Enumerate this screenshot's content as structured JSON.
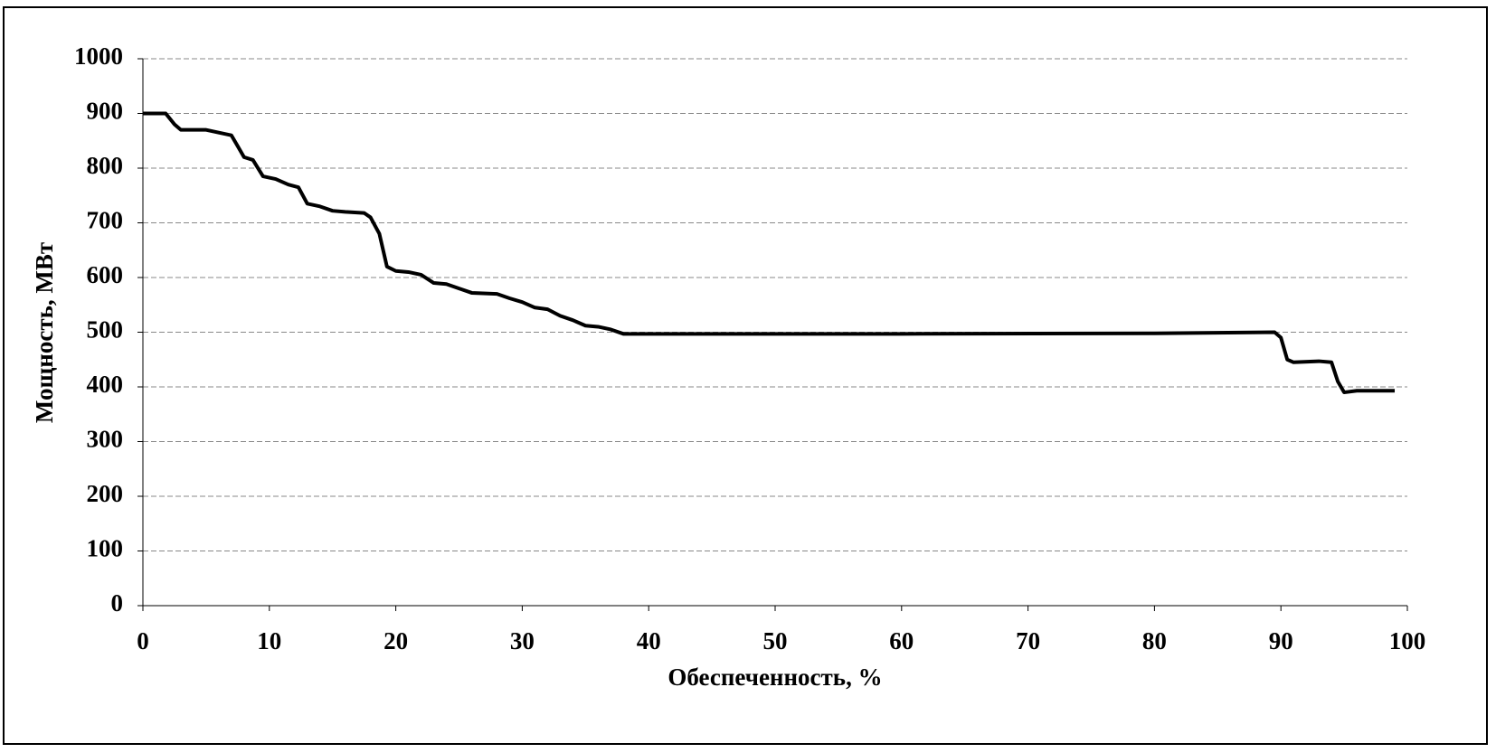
{
  "chart_data": {
    "type": "line",
    "x_label": "Обеспеченность, %",
    "y_label": "Мощность, МВт",
    "xlim": [
      0,
      100
    ],
    "xticks": [
      0,
      10,
      20,
      30,
      40,
      50,
      60,
      70,
      80,
      90,
      100
    ],
    "ylim": [
      0,
      1000
    ],
    "yticks": [
      0,
      100,
      200,
      300,
      400,
      500,
      600,
      700,
      800,
      900,
      1000
    ],
    "grid": true,
    "series": [
      {
        "color": "#000000",
        "x": [
          0,
          1,
          1.8,
          2.5,
          3,
          5,
          6,
          7,
          7.5,
          8,
          8.7,
          9.5,
          10.5,
          11.5,
          12.3,
          13,
          14,
          15,
          16,
          17.5,
          18,
          18.7,
          19.3,
          20,
          21,
          22,
          23,
          24,
          25,
          26,
          28,
          29,
          30,
          31,
          32,
          33,
          34,
          35,
          36,
          37,
          38,
          40,
          60,
          80,
          89.5,
          90,
          90.5,
          91,
          93,
          94,
          94.5,
          95,
          96,
          99
        ],
        "values": [
          900,
          900,
          900,
          880,
          870,
          870,
          865,
          860,
          840,
          820,
          815,
          785,
          780,
          770,
          765,
          735,
          730,
          722,
          720,
          718,
          710,
          680,
          620,
          612,
          610,
          605,
          590,
          588,
          580,
          572,
          570,
          562,
          555,
          545,
          542,
          530,
          522,
          512,
          510,
          505,
          497,
          497,
          497,
          498,
          500,
          490,
          450,
          445,
          447,
          445,
          410,
          390,
          393,
          393
        ]
      }
    ]
  }
}
